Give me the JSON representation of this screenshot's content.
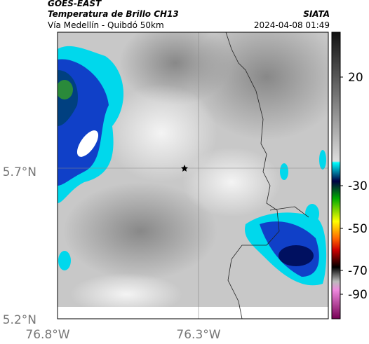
{
  "header": {
    "source": "GOES-EAST",
    "title": "Temperatura de Brillo CH13",
    "subtitle": "Vía Medellín - Quibdó 50km",
    "brand": "SIATA",
    "timestamp": "2024-04-08 01:49"
  },
  "map": {
    "lat_labels": [
      "5.7°N",
      "5.2°N"
    ],
    "lon_labels": [
      "76.8°W",
      "76.3°W"
    ]
  },
  "colorbar": {
    "labels": [
      "20",
      "-30",
      "-50",
      "-70",
      "-90"
    ]
  }
}
